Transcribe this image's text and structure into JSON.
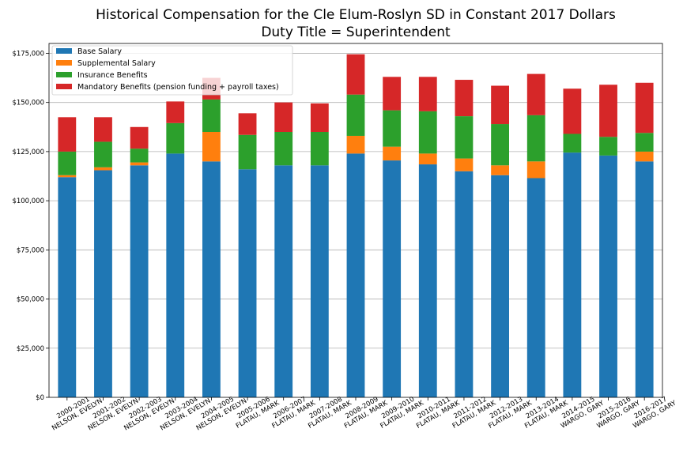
{
  "chart_data": {
    "type": "bar",
    "stacked": true,
    "title": "Historical Compensation for the Cle Elum-Roslyn SD in Constant 2017 Dollars",
    "subtitle": "Duty Title = Superintendent",
    "ylim": [
      0,
      180000
    ],
    "yticks": [
      "$0",
      "$25,000",
      "$50,000",
      "$75,000",
      "$100,000",
      "$125,000",
      "$150,000",
      "$175,000"
    ],
    "ytick_values": [
      0,
      25000,
      50000,
      75000,
      100000,
      125000,
      150000,
      175000
    ],
    "grid": true,
    "legend_position": "top-left",
    "categories": [
      "2000-2001\nNELSON, EVELYN",
      "2001-2002\nNELSON, EVELYN",
      "2002-2003\nNELSON, EVELYN",
      "2003-2004\nNELSON, EVELYN",
      "2004-2005\nNELSON, EVELYN",
      "2005-2006\nFLATAU, MARK",
      "2006-2007\nFLATAU, MARK",
      "2007-2008\nFLATAU, MARK",
      "2008-2009\nFLATAU, MARK",
      "2009-2010\nFLATAU, MARK",
      "2010-2011\nFLATAU, MARK",
      "2011-2012\nFLATAU, MARK",
      "2012-2013\nFLATAU, MARK",
      "2013-2014\nFLATAU, MARK",
      "2014-2015\nWARGO, GARY",
      "2015-2016\nWARGO, GARY",
      "2016-2017\nWARGO, GARY"
    ],
    "series": [
      {
        "name": "Base Salary",
        "color": "#1f77b4",
        "values": [
          112000,
          115500,
          118000,
          124000,
          120000,
          116000,
          118000,
          118000,
          124000,
          120500,
          118500,
          115000,
          113000,
          111500,
          124500,
          123000,
          120000
        ]
      },
      {
        "name": "Supplemental Salary",
        "color": "#ff7f0e",
        "values": [
          1000,
          1500,
          1500,
          0,
          15000,
          0,
          0,
          0,
          9000,
          7000,
          5500,
          6500,
          5000,
          8500,
          0,
          0,
          5000
        ]
      },
      {
        "name": "Insurance Benefits",
        "color": "#2ca02c",
        "values": [
          12000,
          13000,
          7000,
          15500,
          16500,
          17500,
          17000,
          17000,
          21000,
          18500,
          21500,
          21500,
          21000,
          23500,
          9500,
          9500,
          9500
        ]
      },
      {
        "name": "Mandatory Benefits (pension funding + payroll taxes)",
        "color": "#d62728",
        "values": [
          17500,
          12500,
          11000,
          11000,
          11000,
          11000,
          15000,
          14500,
          20500,
          17000,
          17500,
          18500,
          19500,
          21000,
          23000,
          26500,
          25500
        ]
      }
    ]
  }
}
